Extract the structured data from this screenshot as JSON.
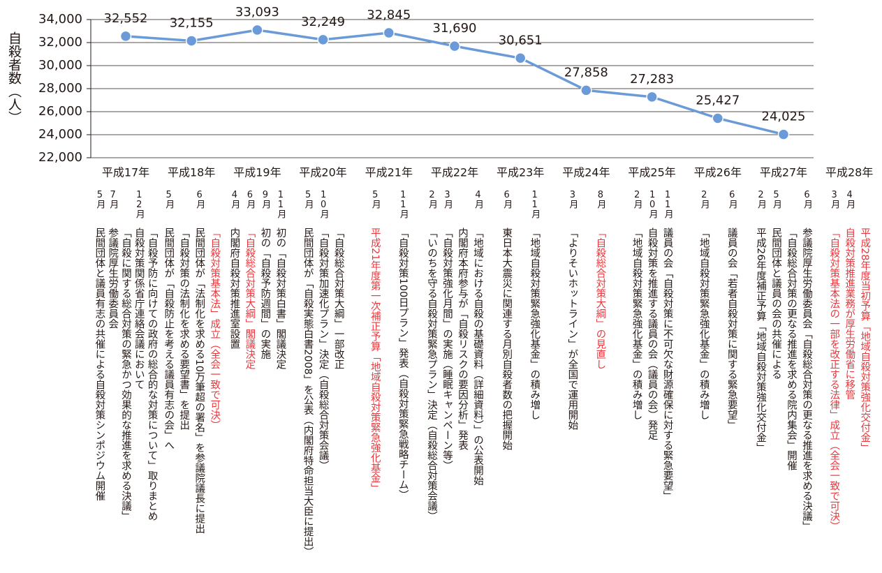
{
  "chart_data": {
    "type": "line",
    "y_label": "自殺者数（人）",
    "categories": [
      "平成17年",
      "平成18年",
      "平成19年",
      "平成20年",
      "平成21年",
      "平成22年",
      "平成23年",
      "平成24年",
      "平成25年",
      "平成26年",
      "平成27年",
      "平成28年"
    ],
    "values": [
      32552,
      32155,
      33093,
      32249,
      32845,
      31690,
      30651,
      27858,
      27283,
      25427,
      24025,
      null
    ],
    "value_labels": [
      "32,552",
      "32,155",
      "33,093",
      "32,249",
      "32,845",
      "31,690",
      "30,651",
      "27,858",
      "27,283",
      "25,427",
      "24,025",
      null
    ],
    "color": "#6a9bd8",
    "ylim": [
      22000,
      34000
    ],
    "yticks": [
      {
        "value": 22000,
        "label": "22,000"
      },
      {
        "value": 24000,
        "label": "24,000"
      },
      {
        "value": 26000,
        "label": "26,000"
      },
      {
        "value": 28000,
        "label": "28,000"
      },
      {
        "value": 30000,
        "label": "30,000"
      },
      {
        "value": 32000,
        "label": "32,000"
      },
      {
        "value": 34000,
        "label": "34,000"
      }
    ],
    "grid": true
  },
  "timeline": {
    "years": [
      {
        "events": [
          {
            "month": "5月",
            "lines": [
              {
                "text": "民間団体と議員有志の共催による自殺対策シンポジウム開催"
              }
            ]
          },
          {
            "month": "7月",
            "lines": [
              {
                "text": "参議院厚生労働委員会"
              },
              {
                "text": "「自殺に関する総合対策の緊急かつ効果的な推進を求める決議」"
              }
            ]
          },
          {
            "month": "12月",
            "lines": [
              {
                "text": "自殺対策関係省庁連絡会議において"
              },
              {
                "text": "「自殺予防に向けての政府の総合的な対策について」取りまとめ"
              }
            ]
          }
        ]
      },
      {
        "events": [
          {
            "month": "5月",
            "lines": [
              {
                "text": "民間団体が「自殺防止を考える議員有志の会」へ"
              },
              {
                "text": "「自殺対策の法制化を求める要望書」を提出"
              }
            ]
          },
          {
            "month": "6月",
            "lines": [
              {
                "text": "民間団体が「法制化を求める10万筆超の署名」を参議院議長に提出"
              },
              {
                "text": "「自殺対策基本法」成立（全会一致で可決）",
                "color": "#e8383d"
              }
            ]
          }
        ]
      },
      {
        "events": [
          {
            "month": "4月",
            "lines": [
              {
                "text": "内閣府自殺対策推進室設置"
              }
            ]
          },
          {
            "month": "6月",
            "lines": [
              {
                "text": "「自殺総合対策大綱」閣議決定",
                "color": "#e8383d"
              }
            ]
          },
          {
            "month": "9月",
            "lines": [
              {
                "text": "初の「自殺予防週間」の実施"
              }
            ]
          },
          {
            "month": "11月",
            "lines": [
              {
                "text": "初の「自殺対策白書」閣議決定"
              }
            ]
          }
        ]
      },
      {
        "events": [
          {
            "month": "5月",
            "lines": [
              {
                "text": "民間団体が「自殺実態白書2008」を公表（内閣府特命担当大臣に提出）"
              }
            ]
          },
          {
            "month": "10月",
            "lines": [
              {
                "text": "「自殺対策加速化プラン」決定（自殺総合対策会議）"
              },
              {
                "text": "「自殺総合対策大綱」一部改正"
              }
            ]
          }
        ]
      },
      {
        "events": [
          {
            "month": "5月",
            "lines": [
              {
                "text": "平成21年度第一次補正予算「地域自殺対策緊急強化基金」",
                "color": "#e8383d"
              }
            ]
          },
          {
            "month": "11月",
            "lines": [
              {
                "text": "「自殺対策100日プラン」発表（自殺対策緊急戦略チーム）"
              }
            ]
          }
        ]
      },
      {
        "events": [
          {
            "month": "2月",
            "lines": [
              {
                "text": "「いのちを守る自殺対策緊急プラン」決定（自殺総合対策会議）"
              }
            ]
          },
          {
            "month": "3月",
            "lines": [
              {
                "text": "「自殺対策強化月間」の実施（睡眠キャンペーン等）"
              },
              {
                "text": "内閣府本府参与が「自殺リスクの要因分析」発表"
              }
            ]
          },
          {
            "month": "4月",
            "lines": [
              {
                "text": "「地域における自殺の基礎資料（詳細資料）」の公表開始"
              }
            ]
          }
        ]
      },
      {
        "events": [
          {
            "month": "6月",
            "lines": [
              {
                "text": "東日本大震災に関連する月別自殺者数の把握開始"
              }
            ]
          },
          {
            "month": "11月",
            "lines": [
              {
                "text": "「地域自殺対策緊急強化基金」の積み増し"
              }
            ]
          }
        ]
      },
      {
        "events": [
          {
            "month": "3月",
            "lines": [
              {
                "text": "「よりそいホットライン」が全国で運用開始"
              }
            ]
          },
          {
            "month": "8月",
            "lines": [
              {
                "text": "「自殺総合対策大綱」の見直し",
                "color": "#e8383d"
              }
            ]
          }
        ]
      },
      {
        "events": [
          {
            "month": "2月",
            "lines": [
              {
                "text": "「地域自殺対策緊急強化基金」の積み増し"
              }
            ]
          },
          {
            "month": "10月",
            "lines": [
              {
                "text": "自殺対策を推進する議員の会（議員の会）発足"
              }
            ]
          },
          {
            "month": "11月",
            "lines": [
              {
                "text": "議員の会「自殺対策に不可欠な財源確保に対する緊急要望」"
              }
            ]
          }
        ]
      },
      {
        "events": [
          {
            "month": "2月",
            "lines": [
              {
                "text": "「地域自殺対策緊急強化基金」の積み増し"
              }
            ]
          },
          {
            "month": "6月",
            "lines": [
              {
                "text": "議員の会「若者自殺対策に関する緊急要望」"
              }
            ]
          }
        ]
      },
      {
        "events": [
          {
            "month": "2月",
            "lines": [
              {
                "text": "平成26年度補正予算「地域自殺対策強化交付金」"
              }
            ]
          },
          {
            "month": "5月",
            "lines": [
              {
                "text": "民間団体と議員の会の共催による"
              },
              {
                "text": "「自殺総合対策の更なる推進を求める院内集会」開催"
              }
            ]
          },
          {
            "month": "6月",
            "lines": [
              {
                "text": "参議院厚生労働委員会「自殺総合対策の更なる推進を求める決議」"
              }
            ]
          }
        ]
      },
      {
        "events": [
          {
            "month": "3月",
            "lines": [
              {
                "text": "「自殺対策基本法の一部を改正する法律」成立（全会一致で可決）",
                "color": "#e8383d"
              }
            ]
          },
          {
            "month": "4月",
            "lines": [
              {
                "text": "自殺対策推進業務が厚生労働省に移管",
                "color": "#e8383d"
              },
              {
                "text": "平成28年度当初予算「地域自殺対策強化交付金」",
                "color": "#e8383d"
              }
            ]
          }
        ]
      }
    ]
  }
}
